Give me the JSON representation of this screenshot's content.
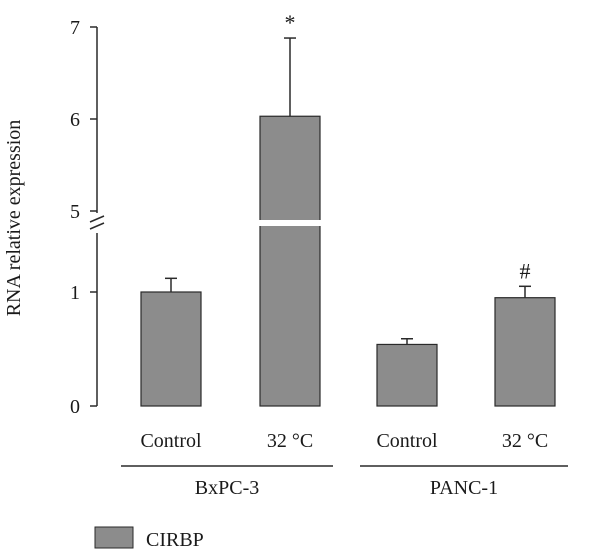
{
  "chart_data": {
    "type": "bar",
    "title": "",
    "xlabel": "",
    "ylabel": "RNA relative expression",
    "y_axis_break": {
      "lower": [
        0,
        1.5
      ],
      "upper": [
        5,
        7
      ]
    },
    "yticks": [
      "0",
      "1",
      "5",
      "6",
      "7"
    ],
    "groups": [
      {
        "label": "BxPC-3",
        "categories": [
          "Control",
          "32 °C"
        ]
      },
      {
        "label": "PANC-1",
        "categories": [
          "Control",
          "32 °C"
        ]
      }
    ],
    "categories": [
      "Control",
      "32 °C",
      "Control",
      "32 °C"
    ],
    "series": [
      {
        "name": "CIRBP",
        "color": "#8c8c8c",
        "values": [
          1.0,
          6.03,
          0.54,
          0.95
        ],
        "errors": [
          0.12,
          0.85,
          0.05,
          0.1
        ]
      }
    ],
    "annotations": [
      "",
      "*",
      "",
      "#"
    ],
    "legend": {
      "position": "bottom-left",
      "entries": [
        "CIRBP"
      ]
    },
    "grid": false
  }
}
